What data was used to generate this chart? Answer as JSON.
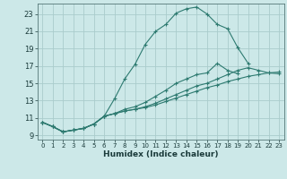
{
  "xlabel": "Humidex (Indice chaleur)",
  "bg_color": "#cce8e8",
  "grid_color": "#aacccc",
  "line_color": "#2d7a70",
  "xlim": [
    -0.5,
    23.5
  ],
  "ylim": [
    8.5,
    24.2
  ],
  "yticks": [
    9,
    11,
    13,
    15,
    17,
    19,
    21,
    23
  ],
  "xticks": [
    0,
    1,
    2,
    3,
    4,
    5,
    6,
    7,
    8,
    9,
    10,
    11,
    12,
    13,
    14,
    15,
    16,
    17,
    18,
    19,
    20,
    21,
    22,
    23
  ],
  "lines": [
    {
      "x": [
        0,
        1,
        2,
        3,
        4,
        5,
        6,
        7,
        8,
        9,
        10,
        11,
        12,
        13,
        14,
        15,
        16,
        17,
        18,
        19,
        20,
        21,
        22,
        23
      ],
      "y": [
        10.5,
        10.0,
        9.4,
        9.6,
        9.8,
        10.3,
        11.2,
        13.2,
        15.5,
        17.2,
        19.5,
        21.0,
        21.8,
        23.1,
        23.6,
        23.8,
        23.0,
        21.8,
        21.3,
        19.1,
        17.3,
        null,
        null,
        null
      ]
    },
    {
      "x": [
        0,
        1,
        2,
        3,
        4,
        5,
        6,
        7,
        8,
        9,
        10,
        11,
        12,
        13,
        14,
        15,
        16,
        17,
        18,
        19,
        20,
        21,
        22,
        23
      ],
      "y": [
        10.5,
        10.0,
        9.4,
        9.6,
        9.8,
        10.3,
        11.2,
        11.5,
        12.0,
        12.3,
        12.8,
        13.5,
        14.2,
        15.0,
        15.5,
        16.0,
        16.2,
        17.3,
        16.5,
        16.1,
        null,
        null,
        null,
        null
      ]
    },
    {
      "x": [
        0,
        1,
        2,
        3,
        4,
        5,
        6,
        7,
        8,
        9,
        10,
        11,
        12,
        13,
        14,
        15,
        16,
        17,
        18,
        19,
        20,
        21,
        22,
        23
      ],
      "y": [
        10.5,
        10.0,
        9.4,
        9.6,
        9.8,
        10.3,
        11.2,
        11.5,
        11.8,
        12.0,
        12.3,
        12.7,
        13.2,
        13.7,
        14.2,
        14.7,
        15.0,
        15.5,
        16.0,
        16.5,
        16.8,
        16.5,
        16.2,
        16.1
      ]
    },
    {
      "x": [
        0,
        1,
        2,
        3,
        4,
        5,
        6,
        7,
        8,
        9,
        10,
        11,
        12,
        13,
        14,
        15,
        16,
        17,
        18,
        19,
        20,
        21,
        22,
        23
      ],
      "y": [
        10.5,
        10.0,
        9.4,
        9.6,
        9.8,
        10.3,
        11.2,
        11.5,
        11.8,
        12.0,
        12.2,
        12.5,
        12.9,
        13.3,
        13.7,
        14.1,
        14.5,
        14.8,
        15.2,
        15.5,
        15.8,
        16.0,
        16.2,
        16.3
      ]
    }
  ]
}
